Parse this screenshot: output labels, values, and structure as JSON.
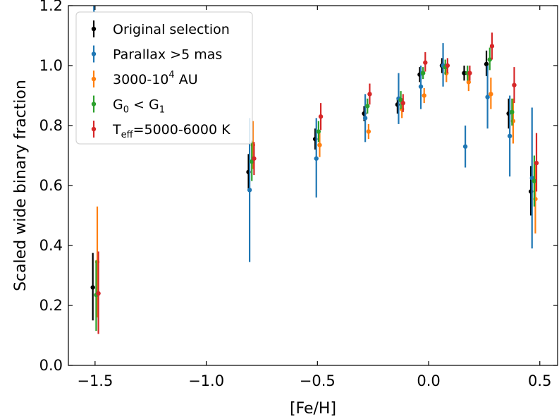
{
  "chart_data": {
    "type": "scatter",
    "title": "",
    "xlabel": "[Fe/H]",
    "ylabel": "Scaled wide binary fraction",
    "xlim": [
      -1.62,
      0.58
    ],
    "ylim": [
      0.0,
      1.2
    ],
    "xticks": [
      -1.5,
      -1.0,
      -0.5,
      0.0,
      0.5
    ],
    "xtick_labels": [
      "−1.5",
      "−1.0",
      "−0.5",
      "0.0",
      "0.5"
    ],
    "yticks": [
      0.0,
      0.2,
      0.4,
      0.6,
      0.8,
      1.0,
      1.2
    ],
    "ytick_labels": [
      "0.0",
      "0.2",
      "0.4",
      "0.6",
      "0.8",
      "1.0",
      "1.2"
    ],
    "grid": false,
    "legend_position": "top-left",
    "series": [
      {
        "name": "Original selection",
        "legend": {
          "main": "Original selection"
        },
        "color": "#000000",
        "points": [
          {
            "x": -1.51,
            "y": 0.26,
            "lo": 0.15,
            "hi": 0.375
          },
          {
            "x": -0.81,
            "y": 0.645,
            "lo": 0.585,
            "hi": 0.705
          },
          {
            "x": -0.51,
            "y": 0.755,
            "lo": 0.72,
            "hi": 0.79
          },
          {
            "x": -0.29,
            "y": 0.84,
            "lo": 0.815,
            "hi": 0.865
          },
          {
            "x": -0.14,
            "y": 0.87,
            "lo": 0.84,
            "hi": 0.895
          },
          {
            "x": -0.04,
            "y": 0.97,
            "lo": 0.945,
            "hi": 0.995
          },
          {
            "x": 0.06,
            "y": 1.0,
            "lo": 0.975,
            "hi": 1.025
          },
          {
            "x": 0.16,
            "y": 0.975,
            "lo": 0.95,
            "hi": 1.0
          },
          {
            "x": 0.26,
            "y": 1.005,
            "lo": 0.965,
            "hi": 1.05
          },
          {
            "x": 0.36,
            "y": 0.84,
            "lo": 0.79,
            "hi": 0.89
          },
          {
            "x": 0.46,
            "y": 0.58,
            "lo": 0.5,
            "hi": 0.665
          }
        ]
      },
      {
        "name": "Parallax >5 mas",
        "legend": {
          "main": "Parallax  >5 mas"
        },
        "color": "#1f77b4",
        "points": [
          {
            "x": -1.505,
            "y": 1.22,
            "lo": 1.18,
            "hi": 1.26
          },
          {
            "x": -0.805,
            "y": 0.585,
            "lo": 0.345,
            "hi": 0.825
          },
          {
            "x": -0.505,
            "y": 0.69,
            "lo": 0.56,
            "hi": 0.825
          },
          {
            "x": -0.285,
            "y": 0.825,
            "lo": 0.745,
            "hi": 0.905
          },
          {
            "x": -0.135,
            "y": 0.89,
            "lo": 0.805,
            "hi": 0.975
          },
          {
            "x": -0.035,
            "y": 0.93,
            "lo": 0.855,
            "hi": 1.0
          },
          {
            "x": 0.065,
            "y": 1.0,
            "lo": 0.93,
            "hi": 1.075
          },
          {
            "x": 0.165,
            "y": 0.73,
            "lo": 0.66,
            "hi": 0.8
          },
          {
            "x": 0.265,
            "y": 0.895,
            "lo": 0.79,
            "hi": 1.0
          },
          {
            "x": 0.365,
            "y": 0.765,
            "lo": 0.63,
            "hi": 0.9
          },
          {
            "x": 0.465,
            "y": 0.625,
            "lo": 0.39,
            "hi": 0.86
          }
        ]
      },
      {
        "name": "3000-10^4 AU",
        "legend": {
          "main": "3000-10",
          "sup": "4",
          "tail": " AU"
        },
        "color": "#ff7f0e",
        "points": [
          {
            "x": -1.49,
            "y": 0.345,
            "lo": 0.16,
            "hi": 0.53
          },
          {
            "x": -0.79,
            "y": 0.735,
            "lo": 0.655,
            "hi": 0.815
          },
          {
            "x": -0.49,
            "y": 0.735,
            "lo": 0.695,
            "hi": 0.775
          },
          {
            "x": -0.27,
            "y": 0.78,
            "lo": 0.755,
            "hi": 0.805
          },
          {
            "x": -0.12,
            "y": 0.855,
            "lo": 0.825,
            "hi": 0.885
          },
          {
            "x": -0.02,
            "y": 0.9,
            "lo": 0.875,
            "hi": 0.925
          },
          {
            "x": 0.08,
            "y": 0.975,
            "lo": 0.945,
            "hi": 1.005
          },
          {
            "x": 0.18,
            "y": 0.945,
            "lo": 0.915,
            "hi": 0.975
          },
          {
            "x": 0.28,
            "y": 0.905,
            "lo": 0.855,
            "hi": 0.96
          },
          {
            "x": 0.38,
            "y": 0.815,
            "lo": 0.74,
            "hi": 0.89
          },
          {
            "x": 0.48,
            "y": 0.555,
            "lo": 0.44,
            "hi": 0.67
          }
        ]
      },
      {
        "name": "G0 < G1",
        "legend": {
          "main": "G",
          "sub": "0",
          "tail": " < G",
          "sub2": "1"
        },
        "color": "#2ca02c",
        "points": [
          {
            "x": -1.495,
            "y": 0.235,
            "lo": 0.115,
            "hi": 0.35
          },
          {
            "x": -0.795,
            "y": 0.68,
            "lo": 0.615,
            "hi": 0.75
          },
          {
            "x": -0.495,
            "y": 0.78,
            "lo": 0.745,
            "hi": 0.815
          },
          {
            "x": -0.275,
            "y": 0.865,
            "lo": 0.84,
            "hi": 0.89
          },
          {
            "x": -0.125,
            "y": 0.885,
            "lo": 0.855,
            "hi": 0.915
          },
          {
            "x": -0.025,
            "y": 0.975,
            "lo": 0.955,
            "hi": 0.995
          },
          {
            "x": 0.075,
            "y": 0.995,
            "lo": 0.97,
            "hi": 1.02
          },
          {
            "x": 0.175,
            "y": 0.975,
            "lo": 0.95,
            "hi": 1.0
          },
          {
            "x": 0.275,
            "y": 1.02,
            "lo": 0.985,
            "hi": 1.06
          },
          {
            "x": 0.375,
            "y": 0.845,
            "lo": 0.8,
            "hi": 0.89
          },
          {
            "x": 0.475,
            "y": 0.615,
            "lo": 0.53,
            "hi": 0.7
          }
        ]
      },
      {
        "name": "Teff=5000-6000 K",
        "legend": {
          "main": "T",
          "sub": "eff",
          "tail": "=5000-6000 K"
        },
        "color": "#d62728",
        "points": [
          {
            "x": -1.485,
            "y": 0.24,
            "lo": 0.105,
            "hi": 0.38
          },
          {
            "x": -0.785,
            "y": 0.69,
            "lo": 0.635,
            "hi": 0.745
          },
          {
            "x": -0.485,
            "y": 0.83,
            "lo": 0.785,
            "hi": 0.875
          },
          {
            "x": -0.265,
            "y": 0.905,
            "lo": 0.87,
            "hi": 0.94
          },
          {
            "x": -0.115,
            "y": 0.875,
            "lo": 0.845,
            "hi": 0.905
          },
          {
            "x": -0.015,
            "y": 1.01,
            "lo": 0.98,
            "hi": 1.045
          },
          {
            "x": 0.085,
            "y": 1.0,
            "lo": 0.975,
            "hi": 1.025
          },
          {
            "x": 0.185,
            "y": 0.975,
            "lo": 0.95,
            "hi": 1.0
          },
          {
            "x": 0.285,
            "y": 1.065,
            "lo": 1.02,
            "hi": 1.11
          },
          {
            "x": 0.385,
            "y": 0.935,
            "lo": 0.875,
            "hi": 0.995
          },
          {
            "x": 0.485,
            "y": 0.675,
            "lo": 0.58,
            "hi": 0.775
          }
        ]
      }
    ]
  }
}
